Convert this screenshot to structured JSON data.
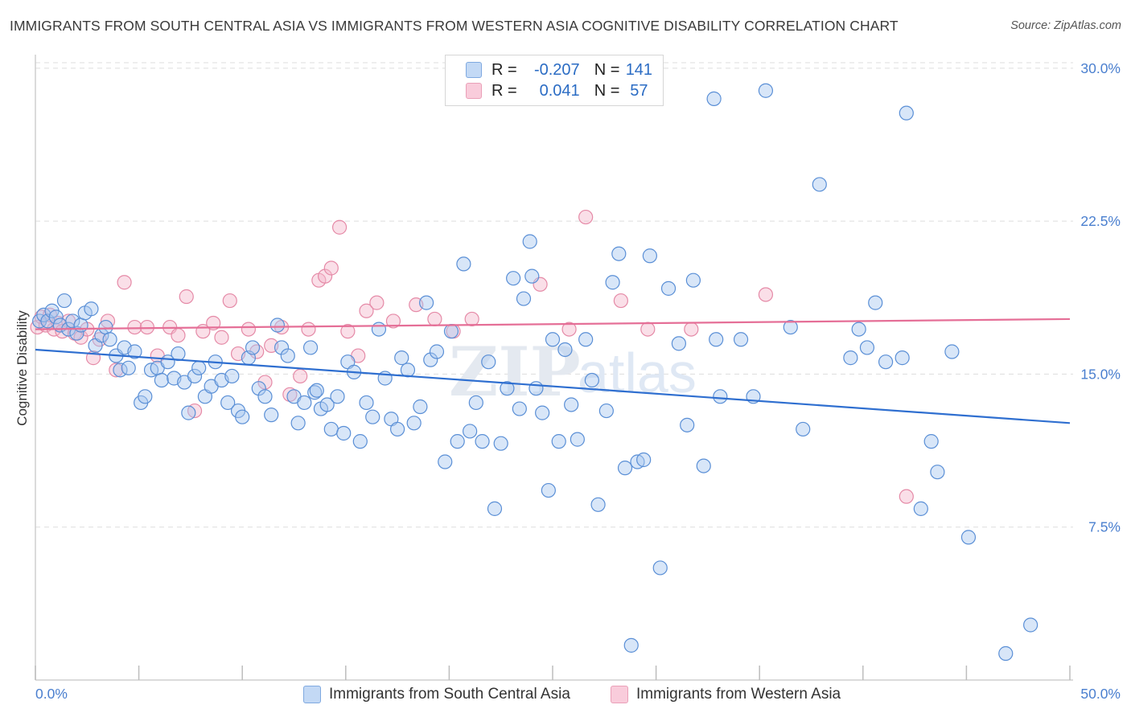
{
  "title": "IMMIGRANTS FROM SOUTH CENTRAL ASIA VS IMMIGRANTS FROM WESTERN ASIA COGNITIVE DISABILITY CORRELATION CHART",
  "source": "Source: ZipAtlas.com",
  "watermark": "ZIPatlas",
  "legend": {
    "r_label": "R =",
    "n_label": "N =",
    "rows": [
      {
        "r": "-0.207",
        "n": "141"
      },
      {
        "r": "0.041",
        "n": "57"
      }
    ]
  },
  "colors": {
    "blue_fill": "#a9c8f0",
    "blue_stroke": "#5a8fd6",
    "blue_line": "#2f6fd0",
    "pink_fill": "#f5b8cb",
    "pink_stroke": "#e58aa7",
    "pink_line": "#e56f97",
    "tick_label": "#4a7fcf",
    "grid": "#dddddd"
  },
  "chart_data": {
    "type": "scatter",
    "title": "IMMIGRANTS FROM SOUTH CENTRAL ASIA VS IMMIGRANTS FROM WESTERN ASIA COGNITIVE DISABILITY CORRELATION CHART",
    "xlabel": "",
    "ylabel": "Cognitive Disability",
    "xlim": [
      0,
      50
    ],
    "ylim": [
      0,
      30.9
    ],
    "x_tick_labels": [
      "0.0%",
      "50.0%"
    ],
    "y_ticks": [
      7.5,
      15.0,
      22.5,
      30.0
    ],
    "y_tick_labels": [
      "7.5%",
      "15.0%",
      "22.5%",
      "30.0%"
    ],
    "grid": true,
    "legend_position": "top-center",
    "series": [
      {
        "name": "Immigrants from South Central Asia",
        "R": -0.207,
        "N": 141,
        "trend": {
          "x": [
            0,
            50
          ],
          "y": [
            16.2,
            12.6
          ]
        },
        "points": [
          [
            0.2,
            17.6
          ],
          [
            0.4,
            17.9
          ],
          [
            0.6,
            17.6
          ],
          [
            0.8,
            18.1
          ],
          [
            1.0,
            17.8
          ],
          [
            1.2,
            17.4
          ],
          [
            1.4,
            18.6
          ],
          [
            1.6,
            17.2
          ],
          [
            1.8,
            17.6
          ],
          [
            2.0,
            17.0
          ],
          [
            2.2,
            17.4
          ],
          [
            2.4,
            18.0
          ],
          [
            2.7,
            18.2
          ],
          [
            2.9,
            16.4
          ],
          [
            3.2,
            16.9
          ],
          [
            3.4,
            17.3
          ],
          [
            3.6,
            16.7
          ],
          [
            3.9,
            15.9
          ],
          [
            4.1,
            15.2
          ],
          [
            4.3,
            16.3
          ],
          [
            4.5,
            15.3
          ],
          [
            4.8,
            16.1
          ],
          [
            5.1,
            13.6
          ],
          [
            5.3,
            13.9
          ],
          [
            5.6,
            15.2
          ],
          [
            5.9,
            15.3
          ],
          [
            6.1,
            14.7
          ],
          [
            6.4,
            15.6
          ],
          [
            6.7,
            14.8
          ],
          [
            6.9,
            16.0
          ],
          [
            7.2,
            14.6
          ],
          [
            7.4,
            13.1
          ],
          [
            7.7,
            14.9
          ],
          [
            7.9,
            15.3
          ],
          [
            8.2,
            13.9
          ],
          [
            8.5,
            14.4
          ],
          [
            8.7,
            15.6
          ],
          [
            9.0,
            14.7
          ],
          [
            9.3,
            13.6
          ],
          [
            9.5,
            14.9
          ],
          [
            9.8,
            13.2
          ],
          [
            10.0,
            12.9
          ],
          [
            10.3,
            15.8
          ],
          [
            10.5,
            16.3
          ],
          [
            10.8,
            14.3
          ],
          [
            11.1,
            13.9
          ],
          [
            11.4,
            13.0
          ],
          [
            11.7,
            17.4
          ],
          [
            11.9,
            16.3
          ],
          [
            12.2,
            15.9
          ],
          [
            12.5,
            13.9
          ],
          [
            12.7,
            12.6
          ],
          [
            13.0,
            13.6
          ],
          [
            13.3,
            16.3
          ],
          [
            13.5,
            14.1
          ],
          [
            13.8,
            13.3
          ],
          [
            14.1,
            13.5
          ],
          [
            14.3,
            12.3
          ],
          [
            14.6,
            13.9
          ],
          [
            14.9,
            12.1
          ],
          [
            15.1,
            15.6
          ],
          [
            15.4,
            15.1
          ],
          [
            15.7,
            11.7
          ],
          [
            16.0,
            13.6
          ],
          [
            16.3,
            12.9
          ],
          [
            16.6,
            17.2
          ],
          [
            16.9,
            14.8
          ],
          [
            17.2,
            12.8
          ],
          [
            17.5,
            12.3
          ],
          [
            17.7,
            15.8
          ],
          [
            18.0,
            15.2
          ],
          [
            18.3,
            12.6
          ],
          [
            18.6,
            13.4
          ],
          [
            18.9,
            18.5
          ],
          [
            19.1,
            15.7
          ],
          [
            19.4,
            16.1
          ],
          [
            19.8,
            10.7
          ],
          [
            20.1,
            17.1
          ],
          [
            20.4,
            11.7
          ],
          [
            20.7,
            20.4
          ],
          [
            21.0,
            12.2
          ],
          [
            21.3,
            13.6
          ],
          [
            21.6,
            11.7
          ],
          [
            21.9,
            15.6
          ],
          [
            22.2,
            8.4
          ],
          [
            22.5,
            11.6
          ],
          [
            22.8,
            14.3
          ],
          [
            23.1,
            19.7
          ],
          [
            23.4,
            13.3
          ],
          [
            23.6,
            18.7
          ],
          [
            23.9,
            21.5
          ],
          [
            24.2,
            14.3
          ],
          [
            24.5,
            13.1
          ],
          [
            24.8,
            9.3
          ],
          [
            25.0,
            16.7
          ],
          [
            25.3,
            11.7
          ],
          [
            25.6,
            16.2
          ],
          [
            25.9,
            13.5
          ],
          [
            26.2,
            11.8
          ],
          [
            26.6,
            16.7
          ],
          [
            26.9,
            14.7
          ],
          [
            27.2,
            8.6
          ],
          [
            27.6,
            13.2
          ],
          [
            27.9,
            19.5
          ],
          [
            28.2,
            20.9
          ],
          [
            28.5,
            10.4
          ],
          [
            28.8,
            1.7
          ],
          [
            29.1,
            10.7
          ],
          [
            29.4,
            10.8
          ],
          [
            29.7,
            20.8
          ],
          [
            30.2,
            5.5
          ],
          [
            30.6,
            19.2
          ],
          [
            31.1,
            16.5
          ],
          [
            31.5,
            12.5
          ],
          [
            31.8,
            19.6
          ],
          [
            32.3,
            10.5
          ],
          [
            32.8,
            28.5
          ],
          [
            32.9,
            16.7
          ],
          [
            33.1,
            13.9
          ],
          [
            34.1,
            16.7
          ],
          [
            34.7,
            13.9
          ],
          [
            35.3,
            28.9
          ],
          [
            36.5,
            17.3
          ],
          [
            37.1,
            12.3
          ],
          [
            37.9,
            24.3
          ],
          [
            39.4,
            15.8
          ],
          [
            39.8,
            17.2
          ],
          [
            40.2,
            16.3
          ],
          [
            40.6,
            18.5
          ],
          [
            41.1,
            15.6
          ],
          [
            41.9,
            15.8
          ],
          [
            42.1,
            27.8
          ],
          [
            42.8,
            8.4
          ],
          [
            43.3,
            11.7
          ],
          [
            43.6,
            10.2
          ],
          [
            44.3,
            16.1
          ],
          [
            45.1,
            7.0
          ],
          [
            46.9,
            1.3
          ],
          [
            48.1,
            2.7
          ],
          [
            24.0,
            19.8
          ],
          [
            13.6,
            14.2
          ]
        ]
      },
      {
        "name": "Immigrants from Western Asia",
        "R": 0.041,
        "N": 57,
        "trend": {
          "x": [
            0,
            50
          ],
          "y": [
            17.2,
            17.7
          ]
        },
        "points": [
          [
            0.1,
            17.3
          ],
          [
            0.3,
            17.8
          ],
          [
            0.5,
            17.4
          ],
          [
            0.7,
            17.9
          ],
          [
            0.9,
            17.2
          ],
          [
            1.1,
            17.5
          ],
          [
            1.3,
            17.1
          ],
          [
            1.6,
            17.6
          ],
          [
            1.9,
            17.0
          ],
          [
            2.2,
            16.8
          ],
          [
            2.5,
            17.2
          ],
          [
            2.8,
            15.8
          ],
          [
            3.1,
            16.7
          ],
          [
            3.5,
            17.6
          ],
          [
            3.9,
            15.2
          ],
          [
            4.3,
            19.5
          ],
          [
            4.8,
            17.3
          ],
          [
            5.4,
            17.3
          ],
          [
            5.9,
            15.9
          ],
          [
            6.5,
            17.3
          ],
          [
            6.9,
            16.9
          ],
          [
            7.3,
            18.8
          ],
          [
            7.7,
            13.2
          ],
          [
            8.1,
            17.1
          ],
          [
            8.6,
            17.5
          ],
          [
            9.0,
            16.8
          ],
          [
            9.4,
            18.6
          ],
          [
            9.8,
            16.0
          ],
          [
            10.3,
            17.2
          ],
          [
            10.7,
            16.1
          ],
          [
            11.1,
            14.6
          ],
          [
            11.4,
            16.4
          ],
          [
            11.9,
            17.3
          ],
          [
            12.3,
            14.0
          ],
          [
            12.8,
            14.9
          ],
          [
            13.2,
            17.2
          ],
          [
            13.7,
            19.6
          ],
          [
            14.0,
            19.8
          ],
          [
            14.3,
            20.2
          ],
          [
            14.7,
            22.2
          ],
          [
            15.1,
            17.1
          ],
          [
            15.6,
            15.9
          ],
          [
            16.0,
            18.1
          ],
          [
            16.5,
            18.5
          ],
          [
            17.3,
            17.6
          ],
          [
            18.4,
            18.4
          ],
          [
            19.3,
            17.7
          ],
          [
            20.2,
            17.1
          ],
          [
            21.1,
            17.7
          ],
          [
            24.4,
            19.4
          ],
          [
            25.8,
            17.2
          ],
          [
            26.6,
            22.7
          ],
          [
            28.3,
            18.6
          ],
          [
            29.6,
            17.2
          ],
          [
            31.7,
            17.2
          ],
          [
            35.3,
            18.9
          ],
          [
            42.1,
            9.0
          ]
        ]
      }
    ]
  },
  "bottom_legend": [
    {
      "label": "Immigrants from South Central Asia"
    },
    {
      "label": "Immigrants from Western Asia"
    }
  ]
}
